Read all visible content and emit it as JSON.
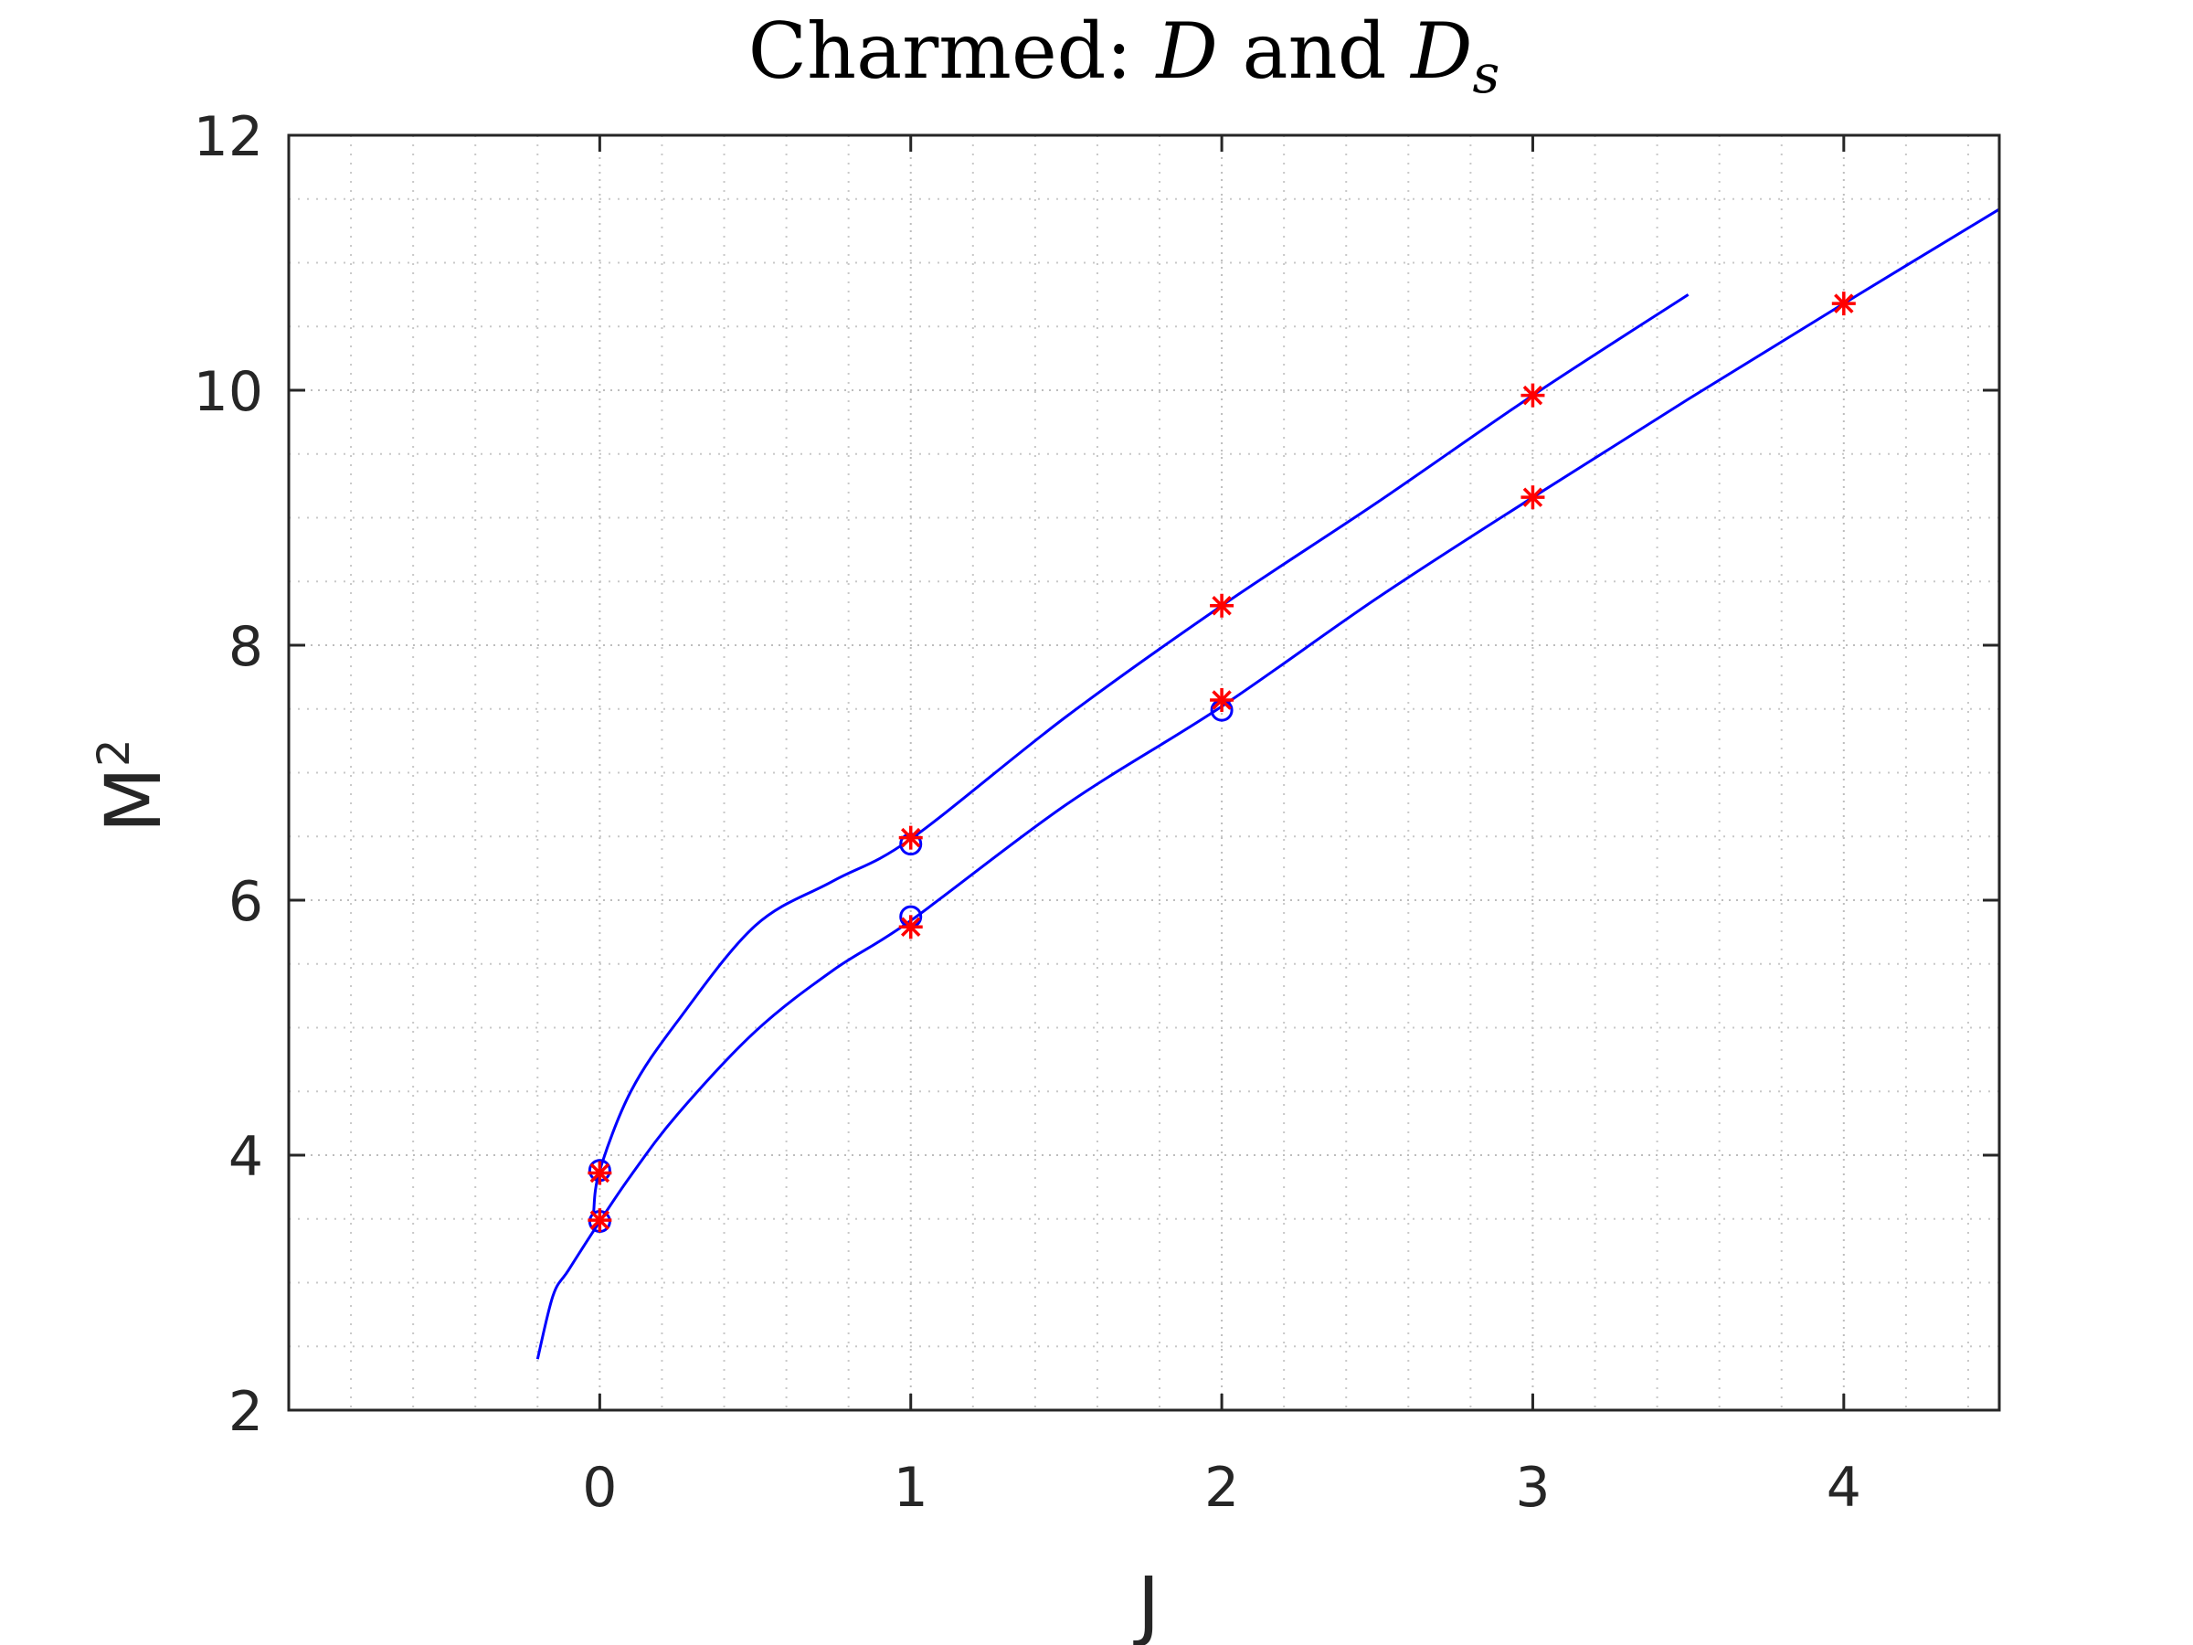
{
  "chart_data": {
    "type": "scatter",
    "title": {
      "prefix": "Charmed: ",
      "var1": "D",
      "middle": " and ",
      "var2": "D",
      "var2_sub": "s"
    },
    "xlabel": "J",
    "ylabel": "M",
    "ylabel_superscript": "2",
    "xlim": [
      -1,
      4.5
    ],
    "ylim": [
      2,
      12
    ],
    "xticks": [
      0,
      1,
      2,
      3,
      4
    ],
    "yticks": [
      2,
      4,
      6,
      8,
      10,
      12
    ],
    "grid": "on",
    "minor_grid": "on",
    "series": [
      {
        "marker": "circle",
        "color": "#0000ff",
        "x": [
          0,
          0,
          1,
          1,
          2
        ],
        "y": [
          3.88,
          3.48,
          6.44,
          5.87,
          7.49
        ]
      },
      {
        "marker": "asterisk",
        "color": "#ff0000",
        "x": [
          0,
          0,
          1,
          1,
          2,
          2,
          3,
          3,
          4
        ],
        "y": [
          3.86,
          3.49,
          6.49,
          5.79,
          8.31,
          7.57,
          9.96,
          9.16,
          10.68
        ]
      }
    ],
    "curves": [
      {
        "color": "#0000ff",
        "x": [
          -0.02,
          0,
          0.1,
          0.25,
          0.5,
          0.75,
          1,
          1.5,
          2,
          2.5,
          3,
          3.5
        ],
        "y": [
          3.55,
          3.88,
          4.5,
          5.05,
          5.8,
          6.15,
          6.48,
          7.44,
          8.31,
          9.12,
          9.96,
          10.75
        ]
      },
      {
        "color": "#0000ff",
        "x": [
          -0.2,
          -0.15,
          -0.1,
          0,
          0.1,
          0.25,
          0.5,
          0.75,
          1,
          1.5,
          2,
          2.5,
          3,
          3.5,
          4,
          4.5
        ],
        "y": [
          2.4,
          2.9,
          3.1,
          3.48,
          3.84,
          4.32,
          4.97,
          5.45,
          5.84,
          6.75,
          7.52,
          8.37,
          9.16,
          9.93,
          10.68,
          11.42
        ]
      }
    ]
  }
}
